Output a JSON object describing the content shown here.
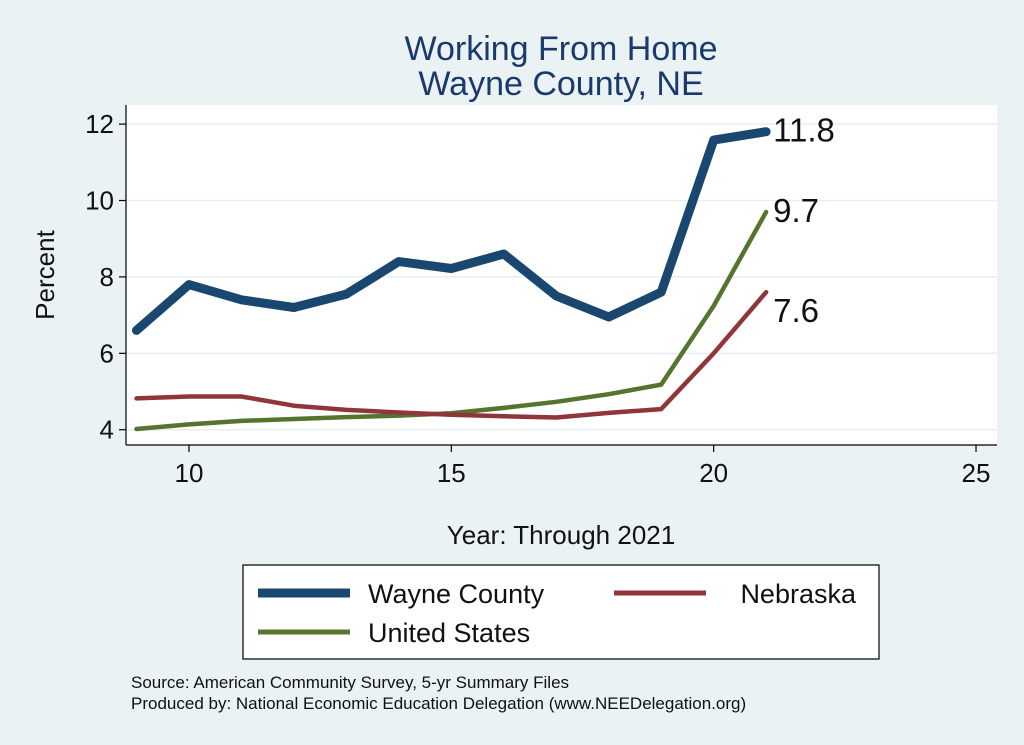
{
  "chart_data": {
    "type": "line",
    "title": "Working From Home",
    "subtitle": "Wayne County, NE",
    "xlabel": "Year: Through 2021",
    "ylabel": "Percent",
    "xlim": [
      8.8,
      25.4
    ],
    "ylim": [
      3.6,
      12.5
    ],
    "xticks": [
      10,
      15,
      20,
      25
    ],
    "yticks": [
      4,
      6,
      8,
      10,
      12
    ],
    "grid": true,
    "legend_position": "bottom",
    "x": [
      9,
      10,
      11,
      12,
      13,
      14,
      15,
      16,
      17,
      18,
      19,
      20,
      21
    ],
    "series": [
      {
        "name": "Wayne County",
        "color": "#1a476f",
        "values": [
          6.6,
          7.8,
          7.4,
          7.2,
          7.55,
          8.4,
          8.22,
          8.6,
          7.5,
          6.95,
          7.6,
          11.58,
          11.8
        ],
        "end_label": "11.8"
      },
      {
        "name": "Nebraska",
        "color": "#90353b",
        "values": [
          4.82,
          4.87,
          4.87,
          4.63,
          4.52,
          4.45,
          4.39,
          4.35,
          4.32,
          4.44,
          4.54,
          6.0,
          7.6
        ],
        "end_label": "7.6"
      },
      {
        "name": "United States",
        "color": "#55752f",
        "values": [
          4.02,
          4.14,
          4.23,
          4.28,
          4.33,
          4.37,
          4.43,
          4.57,
          4.73,
          4.93,
          5.18,
          7.24,
          9.7
        ],
        "end_label": "9.7"
      }
    ],
    "notes": [
      "Source: American Community Survey, 5-yr Summary Files",
      "Produced by: National Economic Education Delegation (www.NEEDelegation.org)"
    ]
  }
}
